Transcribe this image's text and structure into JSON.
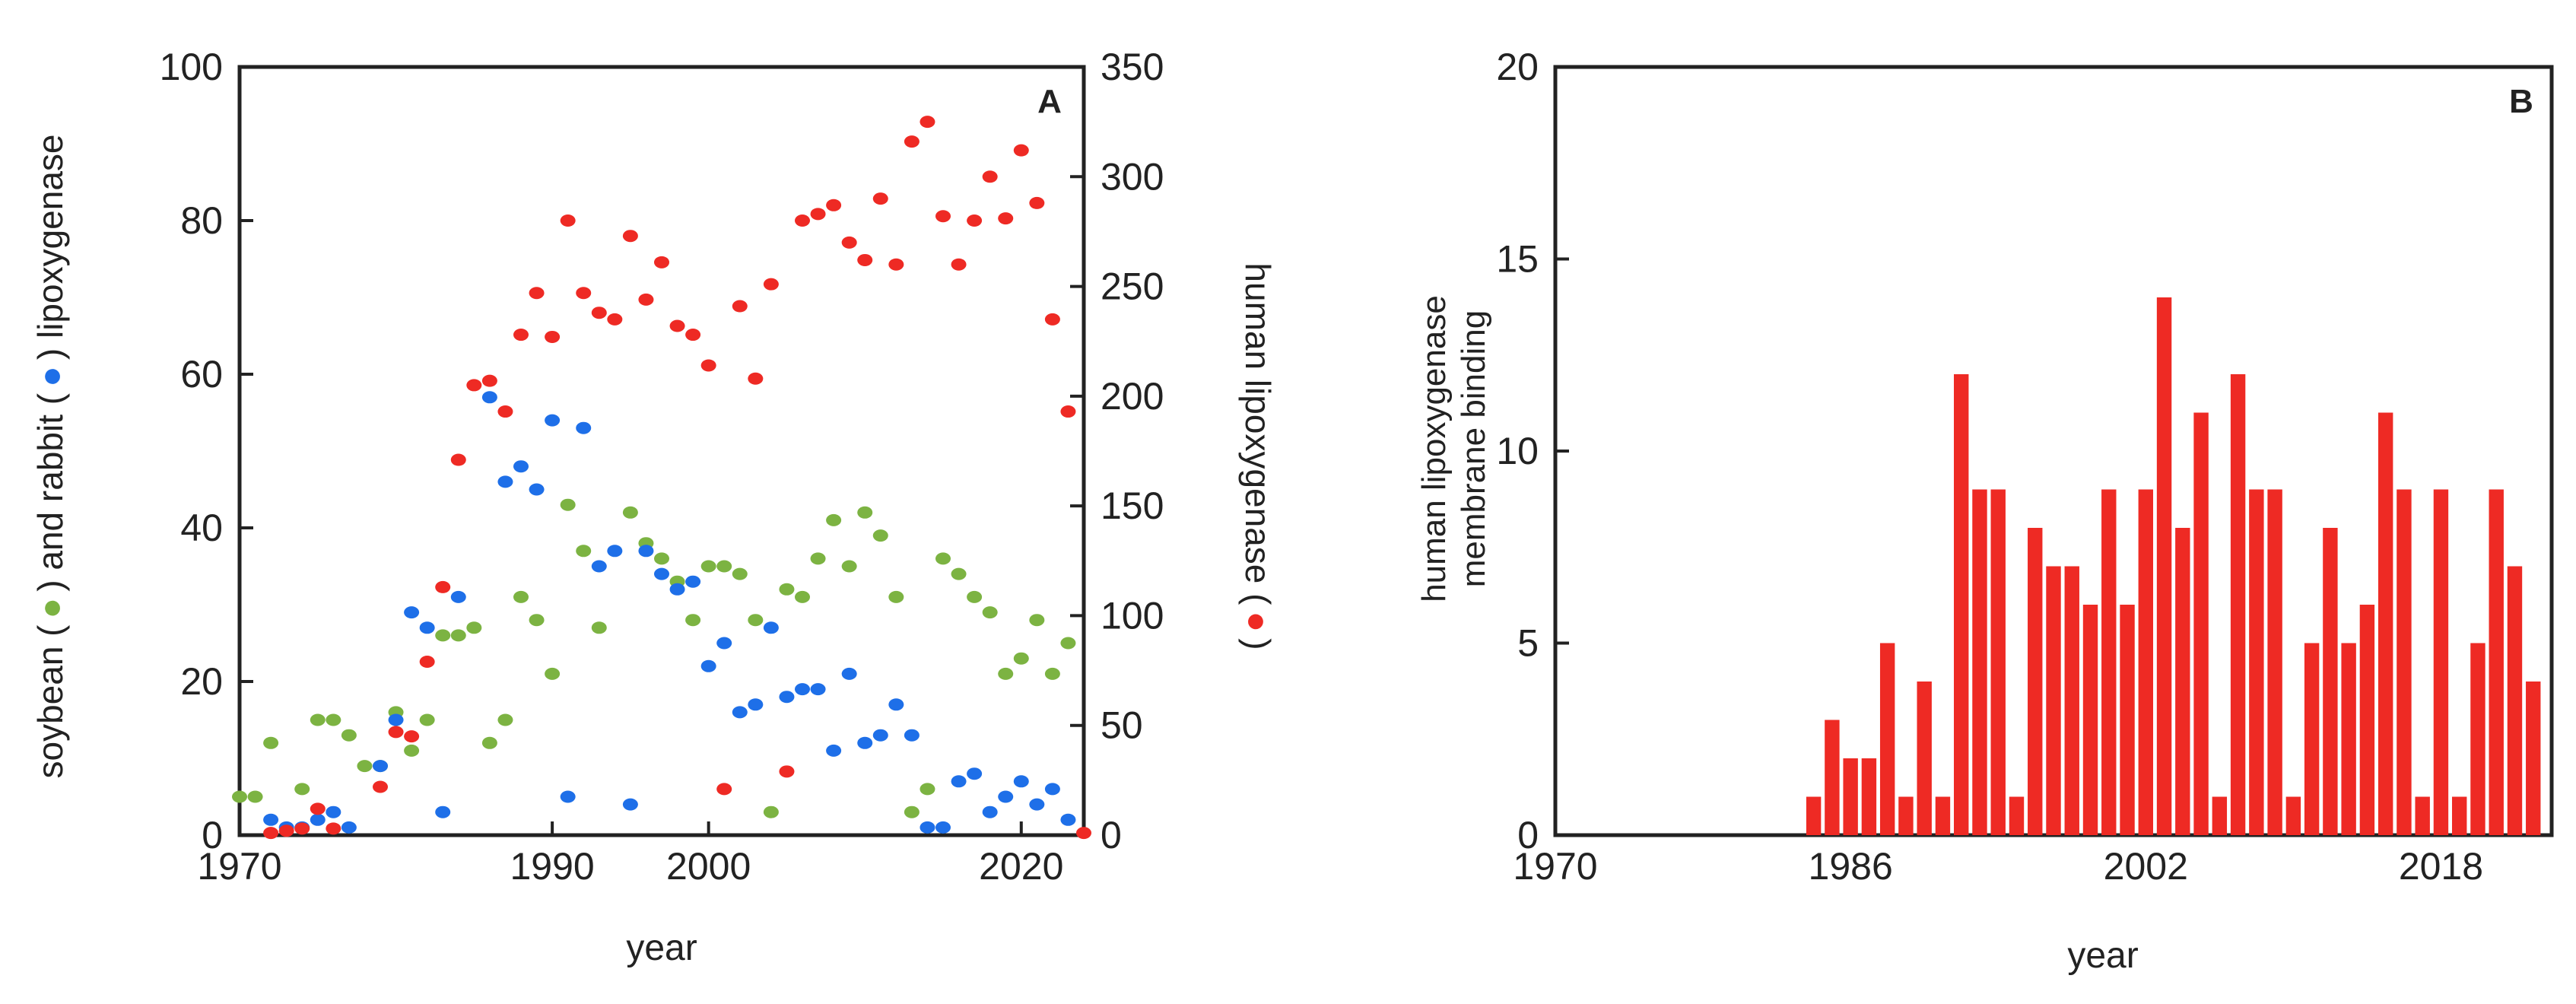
{
  "colors": {
    "soybean": "#7cb342",
    "rabbit": "#1e6fe8",
    "human": "#ee2a24",
    "bar": "#ee2a24",
    "axis": "#222222"
  },
  "chart_data": [
    {
      "type": "scatter",
      "panel_label": "A",
      "xlabel": "year",
      "ylabel_left": {
        "part1": "soybean (",
        "part2": ") and rabbit (",
        "part3": ") lipoxygenase"
      },
      "ylabel_right": {
        "part1": "human lipoxygenase (",
        "part2": ")"
      },
      "xlim": [
        1970,
        2024
      ],
      "x_ticks": [
        1970,
        1990,
        2000,
        2020
      ],
      "ylim_left": [
        0,
        100
      ],
      "ylim_right": [
        0,
        350
      ],
      "y_ticks_left": [
        0,
        20,
        40,
        60,
        80,
        100
      ],
      "y_ticks_right": [
        0,
        50,
        100,
        150,
        200,
        250,
        300,
        350
      ],
      "series": [
        {
          "key": "soybean",
          "axis": "left",
          "x": [
            1970,
            1971,
            1972,
            1974,
            1975,
            1976,
            1977,
            1978,
            1979,
            1980,
            1981,
            1982,
            1983,
            1984,
            1985,
            1986,
            1987,
            1988,
            1989,
            1990,
            1991,
            1992,
            1993,
            1995,
            1996,
            1997,
            1998,
            1999,
            2000,
            2001,
            2002,
            2003,
            2004,
            2005,
            2006,
            2007,
            2008,
            2009,
            2010,
            2011,
            2012,
            2013,
            2014,
            2015,
            2016,
            2017,
            2018,
            2019,
            2020,
            2021,
            2022,
            2023
          ],
          "y": [
            5,
            5,
            12,
            6,
            15,
            15,
            13,
            9,
            9,
            16,
            11,
            15,
            26,
            26,
            27,
            12,
            15,
            31,
            28,
            21,
            43,
            37,
            27,
            42,
            38,
            36,
            33,
            28,
            35,
            35,
            34,
            28,
            3,
            32,
            31,
            36,
            41,
            35,
            42,
            39,
            31,
            3,
            6,
            36,
            34,
            31,
            29,
            21,
            23,
            28,
            21,
            25
          ]
        },
        {
          "key": "rabbit",
          "axis": "left",
          "x": [
            1972,
            1973,
            1974,
            1975,
            1976,
            1977,
            1979,
            1980,
            1981,
            1982,
            1983,
            1984,
            1986,
            1987,
            1988,
            1989,
            1990,
            1991,
            1992,
            1993,
            1994,
            1995,
            1996,
            1997,
            1998,
            1999,
            2000,
            2001,
            2002,
            2003,
            2004,
            2005,
            2006,
            2007,
            2008,
            2009,
            2010,
            2011,
            2012,
            2013,
            2014,
            2015,
            2016,
            2017,
            2018,
            2019,
            2020,
            2021,
            2022,
            2023
          ],
          "y": [
            2,
            1,
            1,
            2,
            3,
            1,
            9,
            15,
            29,
            27,
            3,
            31,
            57,
            46,
            48,
            45,
            54,
            5,
            53,
            35,
            37,
            4,
            37,
            34,
            32,
            33,
            22,
            25,
            16,
            17,
            27,
            18,
            19,
            19,
            11,
            21,
            12,
            13,
            17,
            13,
            1,
            1,
            7,
            8,
            3,
            5,
            7,
            4,
            6,
            2
          ]
        },
        {
          "key": "human",
          "axis": "right",
          "x": [
            1972,
            1973,
            1974,
            1975,
            1976,
            1979,
            1980,
            1981,
            1982,
            1983,
            1984,
            1985,
            1986,
            1987,
            1988,
            1989,
            1990,
            1991,
            1992,
            1993,
            1994,
            1995,
            1996,
            1997,
            1998,
            1999,
            2000,
            2001,
            2002,
            2003,
            2004,
            2005,
            2006,
            2007,
            2008,
            2009,
            2010,
            2011,
            2012,
            2013,
            2014,
            2015,
            2016,
            2017,
            2018,
            2019,
            2020,
            2021,
            2022,
            2023,
            2024
          ],
          "y": [
            1,
            2,
            3,
            12,
            3,
            22,
            47,
            45,
            79,
            113,
            171,
            205,
            207,
            193,
            228,
            247,
            227,
            280,
            247,
            238,
            235,
            273,
            244,
            261,
            232,
            228,
            214,
            21,
            241,
            208,
            251,
            29,
            280,
            283,
            287,
            270,
            262,
            290,
            260,
            316,
            325,
            282,
            260,
            280,
            300,
            281,
            312,
            288,
            235,
            193,
            1
          ]
        }
      ]
    },
    {
      "type": "bar",
      "panel_label": "B",
      "xlabel": "year",
      "ylabel": {
        "line1": "human lipoxygenase",
        "line2": "membrane binding"
      },
      "xlim": [
        1970,
        2024
      ],
      "x_ticks": [
        1970,
        1986,
        2002,
        2018
      ],
      "ylim": [
        0,
        20
      ],
      "y_ticks": [
        0,
        5,
        10,
        15,
        20
      ],
      "x": [
        1984,
        1985,
        1986,
        1987,
        1988,
        1989,
        1990,
        1991,
        1992,
        1993,
        1994,
        1995,
        1996,
        1997,
        1998,
        1999,
        2000,
        2001,
        2002,
        2003,
        2004,
        2005,
        2006,
        2007,
        2008,
        2009,
        2010,
        2011,
        2012,
        2013,
        2014,
        2015,
        2016,
        2017,
        2018,
        2019,
        2020,
        2021,
        2022,
        2023
      ],
      "values": [
        1,
        3,
        2,
        2,
        5,
        1,
        4,
        1,
        12,
        9,
        9,
        1,
        8,
        7,
        7,
        6,
        9,
        6,
        9,
        14,
        8,
        11,
        1,
        12,
        9,
        9,
        1,
        5,
        8,
        5,
        6,
        11,
        9,
        1,
        9,
        1,
        5,
        9,
        7,
        4
      ]
    }
  ]
}
